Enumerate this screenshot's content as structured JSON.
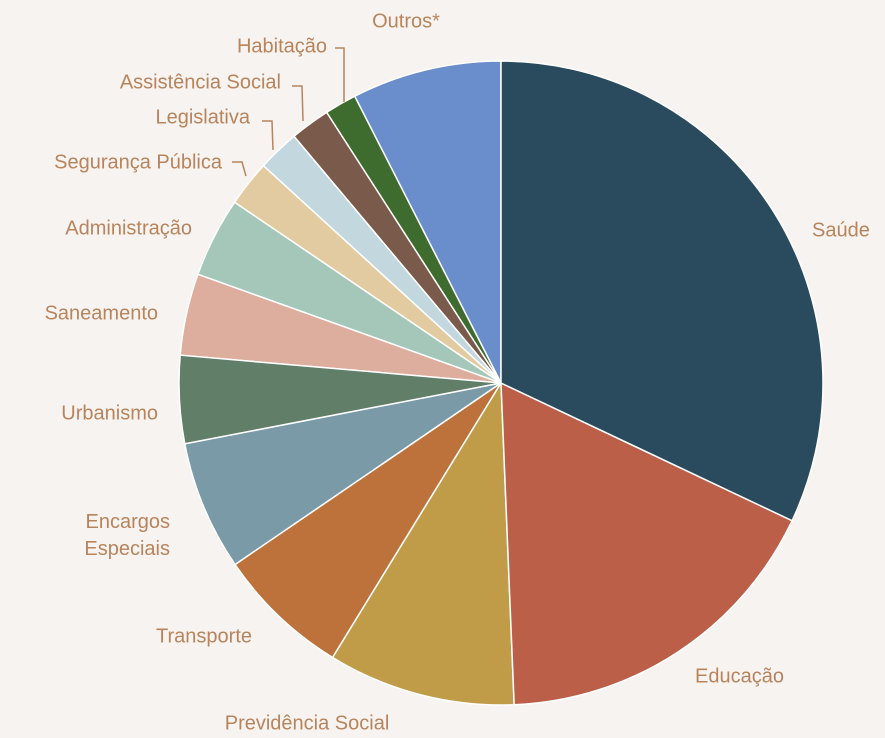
{
  "chart_data": {
    "type": "pie",
    "categories": [
      "Saúde",
      "Educação",
      "Previdência Social",
      "Transporte",
      "Encargos Especiais",
      "Urbanismo",
      "Saneamento",
      "Administração",
      "Segurança Pública",
      "Legislativa",
      "Assistência Social",
      "Habitação",
      "Outros*"
    ],
    "values": [
      32.0,
      17.3,
      9.4,
      6.7,
      6.5,
      4.4,
      4.1,
      4.0,
      2.3,
      2.1,
      2.0,
      1.6,
      7.5
    ],
    "colors": [
      "#2a4a5e",
      "#bb5f49",
      "#c09c48",
      "#bd723b",
      "#7a9aa8",
      "#617e69",
      "#ddae9d",
      "#a4c7b9",
      "#e2cba0",
      "#c2d8de",
      "#7a5a4b",
      "#3e6b2e",
      "#6a8ecb"
    ]
  }
}
